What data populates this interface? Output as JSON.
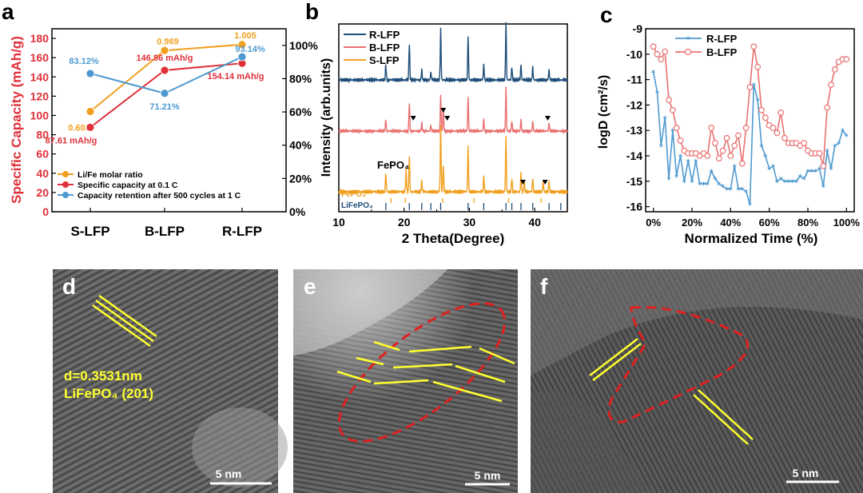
{
  "panels": {
    "a": "a",
    "b": "b",
    "c": "c",
    "d": "d",
    "e": "e",
    "f": "f"
  },
  "colors": {
    "red": "#e0303a",
    "orange": "#f0a020",
    "blue": "#4d9ad0",
    "navy": "#1f4e79",
    "salmon": "#e87070",
    "steel": "#4f9ad0",
    "yellow": "#ffff30",
    "dash_red": "#e02020"
  },
  "chart_data": [
    {
      "id": "a",
      "type": "line",
      "categories": [
        "S-LFP",
        "B-LFP",
        "R-LFP"
      ],
      "ylabel": "Specific Capacity (mAh/g)",
      "ylim": [
        0,
        190
      ],
      "yticks": [
        "0",
        "20",
        "40",
        "60",
        "80",
        "100",
        "120",
        "140",
        "160",
        "180"
      ],
      "y2lim": [
        0,
        1.1
      ],
      "y2ticks": [
        "0%",
        "20%",
        "40%",
        "60%",
        "80%",
        "100%"
      ],
      "legend": "bottom-left",
      "series": [
        {
          "name": "Li/Fe molar ratio",
          "axis": "right",
          "values": [
            0.603,
            0.969,
            1.005
          ],
          "labels": [
            "0.603",
            "0.969",
            "1.005"
          ]
        },
        {
          "name": "Specific capacity at 0.1 C",
          "axis": "left",
          "values": [
            87.61,
            146.86,
            154.14
          ],
          "labels": [
            "87.61 mAh/g",
            "146.86 mAh/g",
            "154.14 mAh/g"
          ]
        },
        {
          "name": "Capacity retention after 500 cycles at 1 C",
          "axis": "right",
          "values": [
            0.8312,
            0.7121,
            0.9314
          ],
          "labels": [
            "83.12%",
            "71.21%",
            "93.14%"
          ]
        }
      ]
    },
    {
      "id": "b",
      "type": "line",
      "xlabel": "2 Theta(Degree)",
      "ylabel": "Intensity (arb.units)",
      "xlim": [
        10,
        45
      ],
      "xticks": [
        "10",
        "20",
        "30",
        "40"
      ],
      "legend": "top-left",
      "series": [
        {
          "name": "R-LFP",
          "peaks": [
            [
              17.2,
              0.3
            ],
            [
              20.8,
              0.7
            ],
            [
              22.7,
              0.2
            ],
            [
              24.1,
              0.15
            ],
            [
              25.6,
              1.0
            ],
            [
              29.8,
              0.85
            ],
            [
              32.2,
              0.3
            ],
            [
              35.6,
              1.1
            ],
            [
              36.5,
              0.25
            ],
            [
              37.9,
              0.3
            ],
            [
              39.7,
              0.25
            ],
            [
              42.2,
              0.2
            ]
          ]
        },
        {
          "name": "B-LFP",
          "peaks": [
            [
              17.2,
              0.3
            ],
            [
              20.8,
              0.7
            ],
            [
              22.7,
              0.2
            ],
            [
              24.1,
              0.15
            ],
            [
              25.6,
              0.9
            ],
            [
              26.0,
              0.6
            ],
            [
              29.8,
              0.85
            ],
            [
              32.2,
              0.3
            ],
            [
              35.6,
              1.1
            ],
            [
              36.5,
              0.25
            ],
            [
              37.9,
              0.3
            ],
            [
              39.7,
              0.25
            ],
            [
              42.2,
              0.2
            ]
          ]
        },
        {
          "name": "S-LFP",
          "peaks": [
            [
              17.2,
              0.35
            ],
            [
              20.3,
              0.4
            ],
            [
              20.8,
              0.65
            ],
            [
              22.7,
              0.2
            ],
            [
              25.6,
              1.25
            ],
            [
              26.0,
              0.5
            ],
            [
              29.8,
              0.85
            ],
            [
              32.2,
              0.3
            ],
            [
              35.6,
              1.05
            ],
            [
              36.5,
              0.25
            ],
            [
              37.9,
              0.35
            ],
            [
              38.4,
              0.2
            ],
            [
              39.7,
              0.25
            ],
            [
              41.3,
              0.2
            ],
            [
              42.2,
              0.2
            ]
          ]
        }
      ],
      "markers_b": [
        21.4,
        26.6,
        42.0
      ],
      "markers_s": [
        26.0,
        38.2,
        41.6
      ],
      "annotation": "FePO₄",
      "ref_fepo4": "FePO₄",
      "ref_lifepo4": "LiFePO₄",
      "ref_fepo4_lines": [
        18.0,
        20.2,
        25.9,
        30.7,
        36.0,
        41.0
      ],
      "ref_lifepo4_lines": [
        17.2,
        20.8,
        22.7,
        24.1,
        25.6,
        29.8,
        32.2,
        35.6,
        36.5,
        37.9,
        39.7,
        42.2,
        44.0
      ]
    },
    {
      "id": "c",
      "type": "line",
      "xlabel": "Normalized Time (%)",
      "ylabel": "logD (cm²/s)",
      "xlim": [
        0,
        1.0
      ],
      "ylim": [
        -16.2,
        -9.0
      ],
      "xticks": [
        "0%",
        "20%",
        "40%",
        "60%",
        "80%",
        "100%"
      ],
      "yticks": [
        "-9",
        "-10",
        "-11",
        "-12",
        "-13",
        "-14",
        "-15",
        "-16"
      ],
      "legend": "top-center",
      "series": [
        {
          "name": "R-LFP",
          "x": [
            0.0,
            0.02,
            0.04,
            0.06,
            0.08,
            0.1,
            0.12,
            0.14,
            0.16,
            0.18,
            0.2,
            0.22,
            0.24,
            0.26,
            0.28,
            0.3,
            0.32,
            0.34,
            0.36,
            0.38,
            0.4,
            0.42,
            0.44,
            0.46,
            0.48,
            0.5,
            0.52,
            0.54,
            0.56,
            0.58,
            0.6,
            0.62,
            0.64,
            0.66,
            0.68,
            0.7,
            0.72,
            0.74,
            0.76,
            0.78,
            0.8,
            0.82,
            0.84,
            0.86,
            0.88,
            0.9,
            0.92,
            0.94,
            0.96,
            0.98,
            1.0
          ],
          "y": [
            -10.7,
            -11.5,
            -13.6,
            -12.5,
            -14.9,
            -13.0,
            -14.8,
            -14.0,
            -15.0,
            -14.2,
            -15.0,
            -14.2,
            -15.1,
            -15.1,
            -15.1,
            -14.6,
            -14.9,
            -15.1,
            -15.2,
            -15.3,
            -15.3,
            -14.4,
            -15.3,
            -15.3,
            -15.4,
            -15.9,
            -11.2,
            -11.8,
            -13.6,
            -14.0,
            -14.5,
            -14.4,
            -15.0,
            -14.9,
            -15.0,
            -15.0,
            -15.0,
            -15.0,
            -14.8,
            -14.9,
            -14.6,
            -14.6,
            -14.6,
            -14.5,
            -15.2,
            -13.8,
            -14.5,
            -13.6,
            -13.5,
            -13.0,
            -13.2
          ]
        },
        {
          "name": "B-LFP",
          "x": [
            0.0,
            0.02,
            0.04,
            0.06,
            0.08,
            0.1,
            0.12,
            0.14,
            0.16,
            0.18,
            0.2,
            0.22,
            0.24,
            0.26,
            0.28,
            0.3,
            0.32,
            0.34,
            0.36,
            0.38,
            0.4,
            0.42,
            0.44,
            0.46,
            0.48,
            0.5,
            0.52,
            0.54,
            0.56,
            0.58,
            0.6,
            0.62,
            0.64,
            0.66,
            0.68,
            0.7,
            0.72,
            0.74,
            0.76,
            0.78,
            0.8,
            0.82,
            0.84,
            0.86,
            0.88,
            0.9,
            0.92,
            0.94,
            0.96,
            0.98,
            1.0
          ],
          "y": [
            -9.7,
            -10.0,
            -10.2,
            -9.9,
            -11.8,
            -12.2,
            -12.9,
            -13.4,
            -13.8,
            -13.9,
            -13.9,
            -13.9,
            -14.0,
            -13.9,
            -14.0,
            -12.9,
            -13.5,
            -14.1,
            -13.8,
            -13.3,
            -14.0,
            -13.6,
            -13.2,
            -14.3,
            -12.9,
            -11.3,
            -9.7,
            -10.5,
            -12.2,
            -12.5,
            -12.8,
            -12.9,
            -13.1,
            -12.3,
            -13.3,
            -13.5,
            -13.5,
            -13.5,
            -13.6,
            -13.5,
            -13.8,
            -13.9,
            -13.9,
            -13.9,
            -14.4,
            -12.1,
            -11.2,
            -10.6,
            -10.3,
            -10.2,
            -10.2
          ]
        }
      ]
    }
  ],
  "images": {
    "d": {
      "lattice": "d=0.3531nm",
      "plane": "LiFePO₄  (201)",
      "scale": "5 nm"
    },
    "e": {
      "scale": "5 nm"
    },
    "f": {
      "scale": "5 nm"
    }
  }
}
